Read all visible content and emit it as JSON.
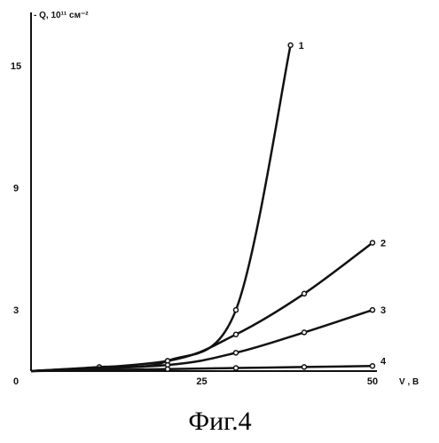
{
  "chart_data": {
    "type": "line",
    "ylabel": "- Q, 10¹¹ см⁻²",
    "xlabel": "V , В",
    "caption": "Фиг.4",
    "xlim": [
      0,
      50
    ],
    "ylim": [
      0,
      18
    ],
    "x_ticks": [
      {
        "value": 0,
        "label": "0"
      },
      {
        "value": 25,
        "label": "25"
      },
      {
        "value": 50,
        "label": "50"
      }
    ],
    "y_ticks": [
      {
        "value": 3,
        "label": "3"
      },
      {
        "value": 9,
        "label": "9"
      },
      {
        "value": 15,
        "label": "15"
      }
    ],
    "series": [
      {
        "name": "1",
        "x": [
          0,
          10,
          20,
          30,
          38
        ],
        "y": [
          0,
          0.2,
          0.5,
          3,
          16
        ]
      },
      {
        "name": "2",
        "x": [
          0,
          20,
          30,
          40,
          50
        ],
        "y": [
          0,
          0.5,
          1.8,
          3.8,
          6.3
        ]
      },
      {
        "name": "3",
        "x": [
          0,
          20,
          30,
          40,
          50
        ],
        "y": [
          0,
          0.3,
          0.9,
          1.9,
          3.0
        ]
      },
      {
        "name": "4",
        "x": [
          0,
          20,
          30,
          40,
          50
        ],
        "y": [
          0,
          0.1,
          0.15,
          0.2,
          0.25
        ]
      }
    ]
  }
}
